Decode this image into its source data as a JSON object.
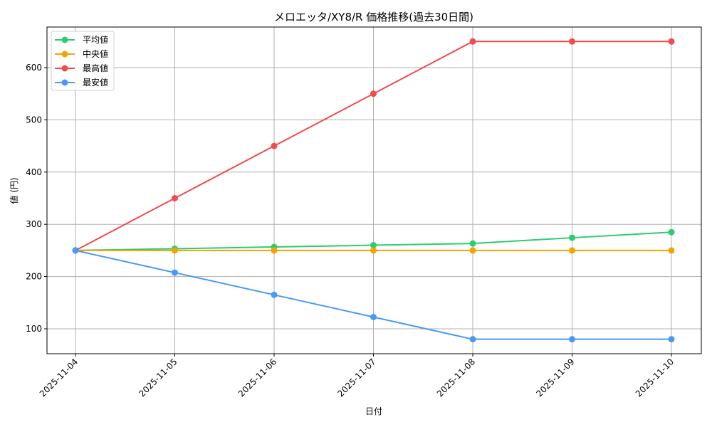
{
  "chart_data": {
    "type": "line",
    "title": "メロエッタ/XY8/R 価格推移(過去30日間)",
    "xlabel": "日付",
    "ylabel": "値 (円)",
    "categories": [
      "2025-11-04",
      "2025-11-05",
      "2025-11-06",
      "2025-11-07",
      "2025-11-08",
      "2025-11-09",
      "2025-11-10"
    ],
    "series": [
      {
        "name": "平均値",
        "color": "#2ecc71",
        "values": [
          250,
          253.3,
          256.7,
          260,
          263.3,
          274.3,
          285
        ]
      },
      {
        "name": "中央値",
        "color": "#f5a300",
        "values": [
          250,
          250,
          250,
          250,
          250,
          250,
          250
        ]
      },
      {
        "name": "最高値",
        "color": "#f24b4b",
        "values": [
          250,
          350,
          450,
          550,
          650,
          650,
          650
        ]
      },
      {
        "name": "最安値",
        "color": "#4a9af5",
        "values": [
          250,
          207.5,
          165,
          122.5,
          80,
          80,
          80
        ]
      }
    ],
    "yticks": [
      100,
      200,
      300,
      400,
      500,
      600
    ],
    "ylim": [
      50,
      677
    ],
    "grid": true,
    "legend_position": "upper left",
    "marker": "circle",
    "xtick_rotation": 45
  }
}
